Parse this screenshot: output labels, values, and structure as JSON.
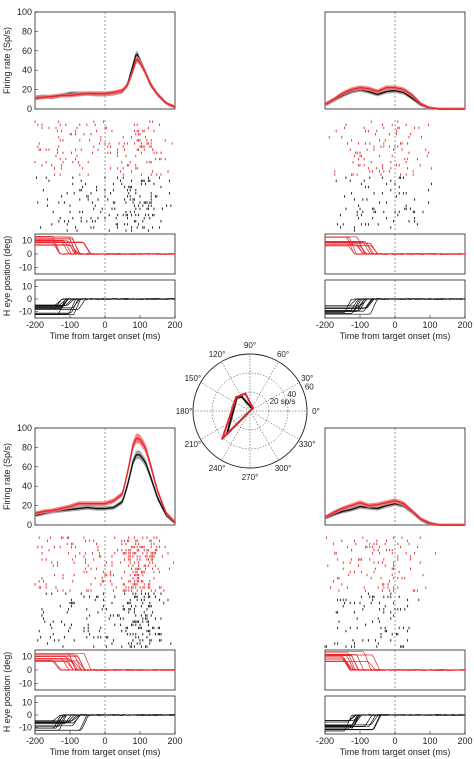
{
  "figure": {
    "psth_ylabel": "Firing rate (Sp/s)",
    "eye_ylabel": "H eye position (deg)",
    "xlabel": "Time from target onset (ms)",
    "psth_yticks": [
      "0",
      "20",
      "40",
      "60",
      "80",
      "100"
    ],
    "eye_yticks": [
      "-10",
      "0",
      "10"
    ],
    "xticks": [
      "-200",
      "-100",
      "0",
      "100",
      "200"
    ]
  },
  "polar": {
    "angle_labels": [
      "0°",
      "30°",
      "60°",
      "90°",
      "120°",
      "150°",
      "180°",
      "210°",
      "240°",
      "270°",
      "300°",
      "330°"
    ],
    "radius_labels": [
      "20 sp/s",
      "40",
      "60"
    ]
  },
  "colors": {
    "condition_a": "#e8252b",
    "condition_b": "#111111",
    "sem_a": "#f07a7a",
    "sem_b": "#9a9a9a"
  },
  "chart_data": [
    {
      "type": "line",
      "panel": "top-left",
      "x": [
        -200,
        -175,
        -150,
        -125,
        -100,
        -75,
        -50,
        -25,
        0,
        25,
        50,
        65,
        80,
        90,
        100,
        115,
        130,
        150,
        175,
        200
      ],
      "series": [
        {
          "color": "red",
          "values": [
            11,
            12,
            13,
            14,
            14,
            15,
            16,
            16,
            16,
            17,
            19,
            25,
            40,
            52,
            48,
            38,
            25,
            15,
            6,
            2
          ]
        },
        {
          "color": "black",
          "values": [
            12,
            13,
            12,
            14,
            16,
            16,
            16,
            15,
            15,
            16,
            18,
            26,
            45,
            58,
            50,
            38,
            26,
            15,
            6,
            2
          ]
        }
      ],
      "xlim": [
        -200,
        200
      ],
      "ylim": [
        0,
        100
      ]
    },
    {
      "type": "line",
      "panel": "top-right",
      "x": [
        -200,
        -175,
        -150,
        -125,
        -100,
        -75,
        -50,
        -25,
        0,
        25,
        50,
        75,
        100,
        125,
        150,
        175,
        200
      ],
      "series": [
        {
          "color": "red",
          "values": [
            5,
            10,
            16,
            20,
            22,
            21,
            18,
            22,
            22,
            20,
            14,
            5,
            1,
            0,
            0,
            0,
            0
          ]
        },
        {
          "color": "black",
          "values": [
            4,
            9,
            14,
            18,
            20,
            18,
            15,
            18,
            19,
            17,
            11,
            4,
            1,
            0,
            0,
            0,
            0
          ]
        }
      ],
      "xlim": [
        -200,
        200
      ],
      "ylim": [
        0,
        100
      ]
    },
    {
      "type": "line",
      "panel": "bottom-left",
      "x": [
        -200,
        -175,
        -150,
        -125,
        -100,
        -75,
        -50,
        -25,
        0,
        25,
        50,
        65,
        80,
        90,
        100,
        115,
        130,
        150,
        175,
        200
      ],
      "series": [
        {
          "color": "red",
          "values": [
            12,
            14,
            15,
            17,
            19,
            22,
            22,
            22,
            22,
            25,
            32,
            55,
            82,
            90,
            88,
            80,
            62,
            35,
            12,
            3
          ]
        },
        {
          "color": "black",
          "values": [
            10,
            12,
            14,
            15,
            16,
            17,
            18,
            17,
            17,
            18,
            24,
            42,
            65,
            73,
            72,
            65,
            50,
            28,
            10,
            2
          ]
        }
      ],
      "xlim": [
        -200,
        200
      ],
      "ylim": [
        0,
        100
      ]
    },
    {
      "type": "line",
      "panel": "bottom-right",
      "x": [
        -200,
        -175,
        -150,
        -125,
        -100,
        -75,
        -50,
        -25,
        0,
        25,
        50,
        75,
        100,
        125,
        150,
        175,
        200
      ],
      "series": [
        {
          "color": "red",
          "values": [
            8,
            13,
            17,
            20,
            23,
            20,
            21,
            23,
            25,
            22,
            14,
            6,
            2,
            0,
            0,
            0,
            0
          ]
        },
        {
          "color": "black",
          "values": [
            7,
            11,
            14,
            16,
            19,
            18,
            17,
            20,
            22,
            20,
            13,
            5,
            1,
            0,
            0,
            0,
            0
          ]
        }
      ],
      "xlim": [
        -200,
        200
      ],
      "ylim": [
        0,
        100
      ]
    },
    {
      "type": "scatter",
      "panel": "polar-tuning",
      "r_max": 70,
      "series": [
        {
          "color": "red",
          "angles": [
            45,
            105,
            135,
            225
          ],
          "r": [
            5,
            22,
            24,
            48
          ]
        },
        {
          "color": "black",
          "angles": [
            45,
            120,
            135,
            225
          ],
          "r": [
            4,
            20,
            23,
            40
          ]
        }
      ]
    }
  ]
}
